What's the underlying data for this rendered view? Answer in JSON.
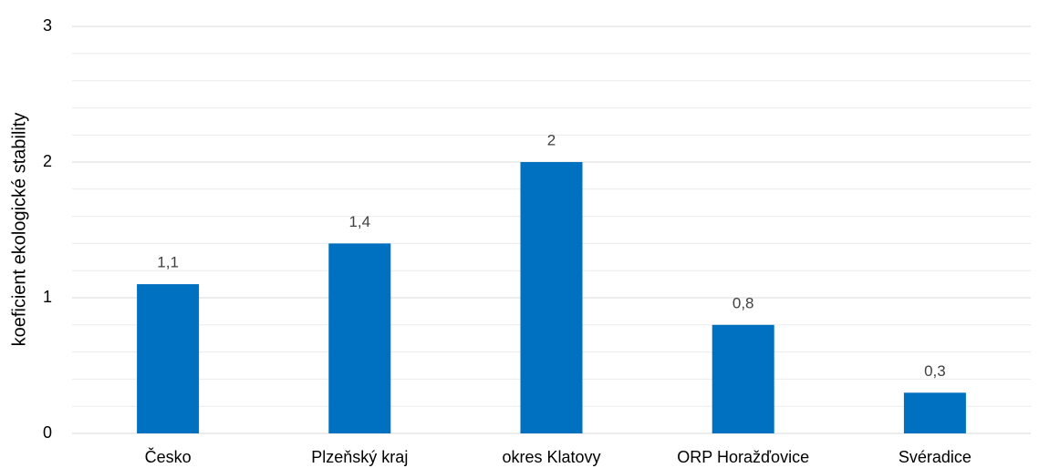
{
  "chart_data": {
    "type": "bar",
    "y_label": "koeficient ekologické stability",
    "categories": [
      "Česko",
      "Plzeňský kraj",
      "okres Klatovy",
      "ORP Horažďovice",
      "Svéradice"
    ],
    "values": [
      1.1,
      1.4,
      2,
      0.8,
      0.3
    ],
    "value_labels": [
      "1,1",
      "1,4",
      "2",
      "0,8",
      "0,3"
    ],
    "color": "#0070c0",
    "ylim": [
      0,
      3
    ],
    "yticks": [
      0,
      1,
      2,
      3
    ],
    "minor_yticks": [
      0.2,
      0.4,
      0.6,
      0.8,
      1.2,
      1.4,
      1.6,
      1.8,
      2.2,
      2.4,
      2.6,
      2.8
    ],
    "grid": true
  }
}
